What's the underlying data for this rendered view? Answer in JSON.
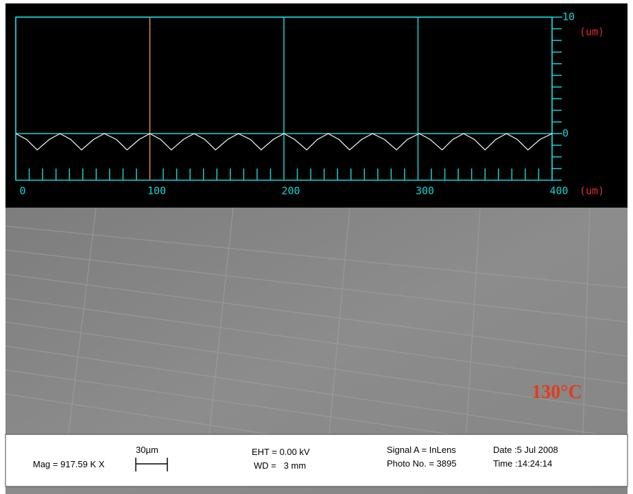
{
  "chart_data": {
    "type": "line",
    "xlabel": "(um)",
    "ylabel": "(um)",
    "xlim": [
      0,
      400
    ],
    "ylim": [
      -4,
      10
    ],
    "xticks": [
      0,
      100,
      200,
      300,
      400
    ],
    "yticks": [
      0,
      10
    ],
    "xticks_minor": [
      10,
      20,
      30,
      40,
      50,
      60,
      70,
      80,
      90,
      110,
      120,
      130,
      140,
      150,
      160,
      170,
      180,
      190,
      210,
      220,
      230,
      240,
      250,
      260,
      270,
      280,
      290,
      310,
      320,
      330,
      340,
      350,
      360,
      370,
      380,
      390
    ],
    "yticks_minor": [
      -4,
      -3,
      -2,
      -1,
      1,
      2,
      3,
      4,
      5,
      6,
      7,
      8,
      9
    ],
    "grid": true,
    "grid_color": "#19d3d3",
    "axis_color": "#19d3d3",
    "unit_color": "#e0302a",
    "cursor": 100,
    "cursor_color": "#e06a5a",
    "x": [
      0,
      8,
      16,
      25,
      33,
      41,
      49,
      58,
      66,
      75,
      83,
      92,
      100,
      108,
      116,
      125,
      133,
      141,
      149,
      158,
      166,
      175,
      183,
      192,
      200,
      208,
      217,
      225,
      233,
      241,
      249,
      258,
      266,
      275,
      284,
      292,
      301,
      309,
      318,
      326,
      334,
      342,
      350,
      358,
      366,
      374,
      382,
      391,
      400
    ],
    "series": [
      {
        "color": "#ffffff",
        "values": [
          0,
          -0.5,
          -1.4,
          -0.5,
          0,
          -0.5,
          -1.4,
          -0.5,
          0,
          -0.5,
          -1.4,
          -0.5,
          0,
          -0.5,
          -1.4,
          -0.5,
          0,
          -0.5,
          -1.4,
          -0.5,
          0,
          -0.5,
          -1.4,
          -0.5,
          0,
          -0.5,
          -1.4,
          -0.5,
          0,
          -0.5,
          -1.4,
          -0.5,
          0,
          -0.5,
          -1.4,
          -0.5,
          0,
          -0.5,
          -1.4,
          -0.5,
          0,
          -0.5,
          -1.4,
          -0.5,
          0,
          -0.5,
          -1.4,
          -0.5,
          0
        ]
      }
    ]
  },
  "image": {
    "annotation": "130°C",
    "info": {
      "scale": "30µm",
      "mag": "Mag = 917.59 K X",
      "eht": "EHT = 0.00 kV",
      "wd": "WD =   3 mm",
      "signal": "Signal A = InLens",
      "photo": "Photo No. = 3895",
      "date": "Date :5 Jul 2008",
      "time": "Time :14:24:14"
    }
  }
}
